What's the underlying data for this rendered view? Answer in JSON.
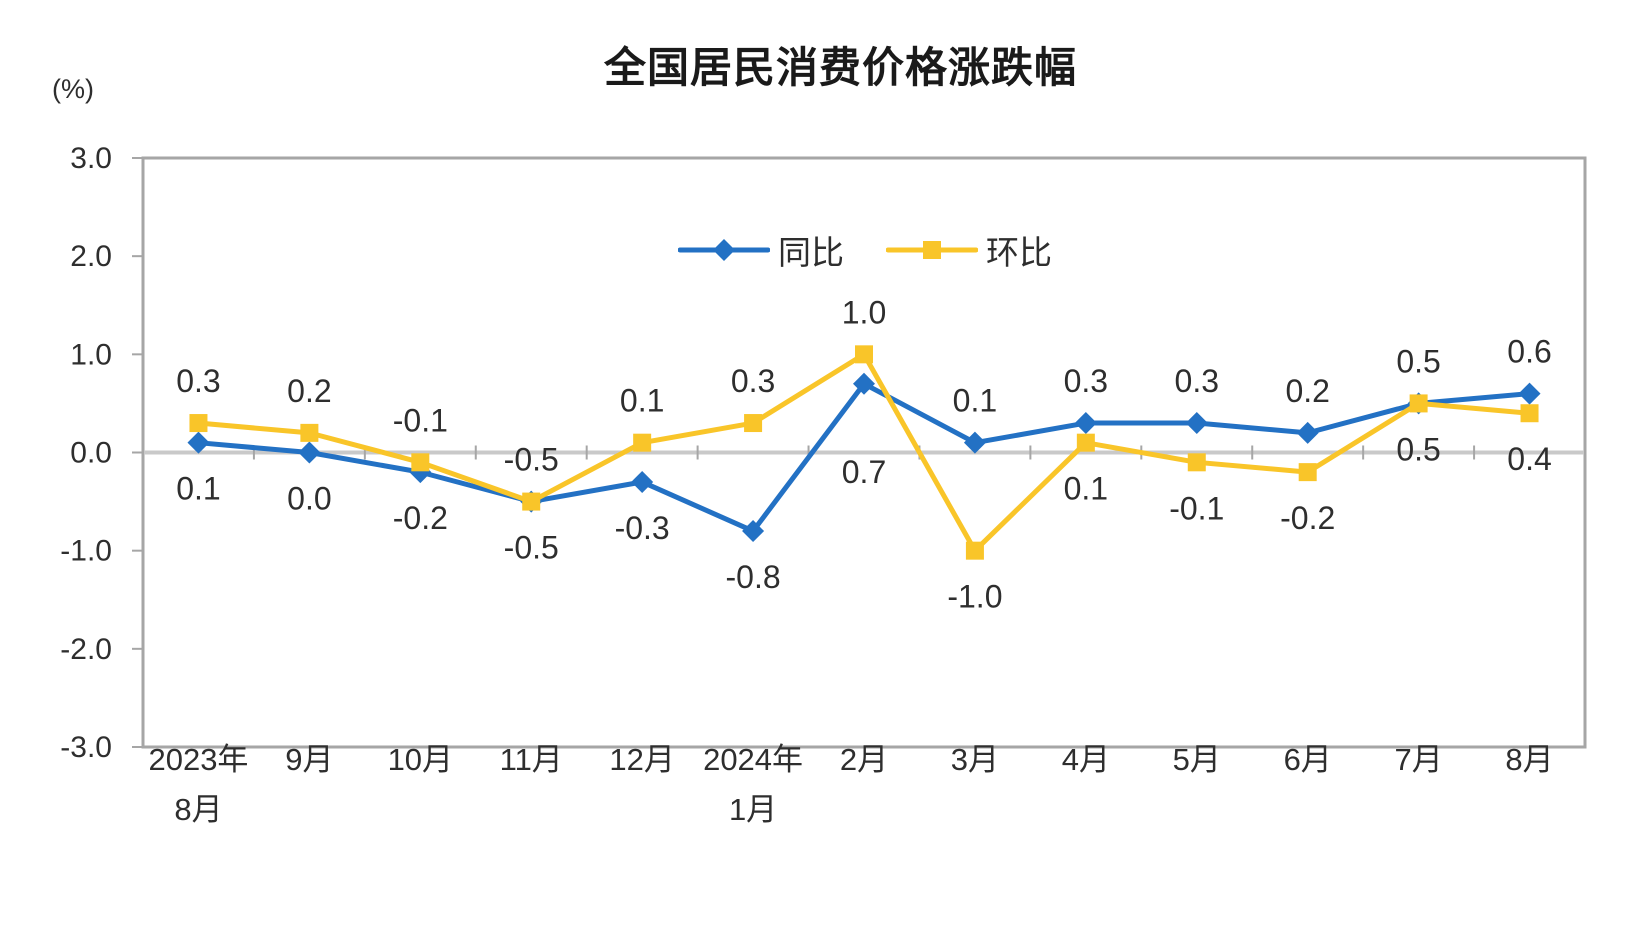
{
  "chart": {
    "title": "全国居民消费价格涨跌幅",
    "unit_label": "(%)"
  },
  "chart_data": {
    "type": "line",
    "title": "全国居民消费价格涨跌幅",
    "unit": "(%)",
    "categories": [
      "2023年8月",
      "9月",
      "10月",
      "11月",
      "12月",
      "2024年1月",
      "2月",
      "3月",
      "4月",
      "5月",
      "6月",
      "7月",
      "8月"
    ],
    "category_lines": [
      [
        "2023年",
        "8月"
      ],
      [
        "9月"
      ],
      [
        "10月"
      ],
      [
        "11月"
      ],
      [
        "12月"
      ],
      [
        "2024年",
        "1月"
      ],
      [
        "2月"
      ],
      [
        "3月"
      ],
      [
        "4月"
      ],
      [
        "5月"
      ],
      [
        "6月"
      ],
      [
        "7月"
      ],
      [
        "8月"
      ]
    ],
    "ylim": [
      -3.0,
      3.0
    ],
    "ytick_step": 1.0,
    "grid": "zero-line-only",
    "legend_position": "top-center",
    "colors": {
      "yoy_line": "#2371C4",
      "mom_line": "#F9C529",
      "axis_border": "#A6A6A6",
      "zero_line": "#C9C9C9",
      "text": "#2e2e2e"
    },
    "series": [
      {
        "key": "yoy",
        "name": "同比",
        "color": "#2371C4",
        "marker": "diamond",
        "values": [
          0.1,
          0.0,
          -0.2,
          -0.5,
          -0.3,
          -0.8,
          0.7,
          0.1,
          0.3,
          0.3,
          0.2,
          0.5,
          0.6
        ],
        "label_side": [
          "below",
          "below",
          "below",
          "below",
          "below",
          "below",
          "below",
          "above",
          "above",
          "above",
          "above",
          "above",
          "above"
        ],
        "label_dy_override": {
          "6": 88
        }
      },
      {
        "key": "mom",
        "name": "环比",
        "color": "#F9C529",
        "marker": "square",
        "values": [
          0.3,
          0.2,
          -0.1,
          -0.5,
          0.1,
          0.3,
          1.0,
          -1.0,
          0.1,
          -0.1,
          -0.2,
          0.5,
          0.4
        ],
        "label_side": [
          "above",
          "above",
          "above",
          "above",
          "above",
          "above",
          "above",
          "below",
          "below",
          "below",
          "below",
          "below",
          "below"
        ]
      }
    ]
  }
}
